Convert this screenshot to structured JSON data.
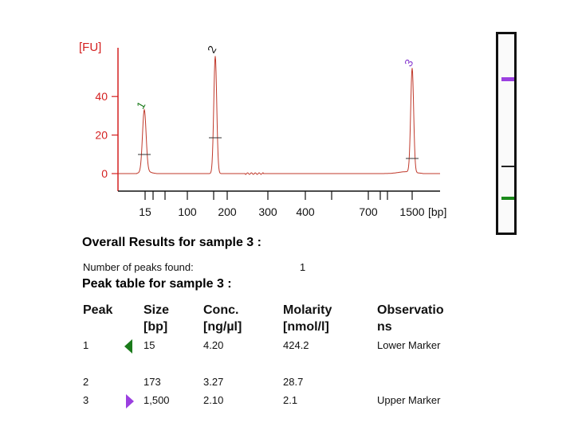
{
  "chart_data": {
    "type": "line",
    "ylabel": "[FU]",
    "xunit": "[bp]",
    "ylim": [
      -5,
      63
    ],
    "yticks": [
      0,
      20,
      40
    ],
    "xtick_labels": [
      "15",
      "100",
      "200",
      "300",
      "400",
      "700",
      "1500"
    ],
    "peaks": [
      {
        "label": "1",
        "size_bp": 15,
        "height_fu": 32,
        "color": "#1a7a1a"
      },
      {
        "label": "2",
        "size_bp": 173,
        "height_fu": 61,
        "color": "#111111"
      },
      {
        "label": "3",
        "size_bp": 1500,
        "height_fu": 54,
        "color": "#8a3fd0"
      }
    ],
    "line_color": "#c0392b",
    "axis_color": "#d42020"
  },
  "gel": {
    "bands": [
      {
        "name": "upper-marker",
        "color": "#9b3fe0"
      },
      {
        "name": "sample",
        "color": "#222222"
      },
      {
        "name": "lower-marker",
        "color": "#1a8a1a"
      }
    ]
  },
  "results": {
    "overall_title": "Overall Results for sample 3  :",
    "npeaks_label": "Number of peaks found:",
    "npeaks_value": "1",
    "peak_table_title": "Peak table for sample 3  :",
    "headers": {
      "peak": "Peak",
      "size": "Size\n[bp]",
      "conc": "Conc.\n[ng/µl]",
      "molarity": "Molarity\n[nmol/l]",
      "observations": "Observatio\nns"
    },
    "rows": [
      {
        "peak": "1",
        "size": "15",
        "conc": "4.20",
        "molarity": "424.2",
        "obs": "Lower Marker",
        "marker": "lower"
      },
      {
        "peak": "2",
        "size": "173",
        "conc": "3.27",
        "molarity": "28.7",
        "obs": "",
        "marker": ""
      },
      {
        "peak": "3",
        "size": "1,500",
        "conc": "2.10",
        "molarity": "2.1",
        "obs": "Upper Marker",
        "marker": "upper"
      }
    ]
  }
}
